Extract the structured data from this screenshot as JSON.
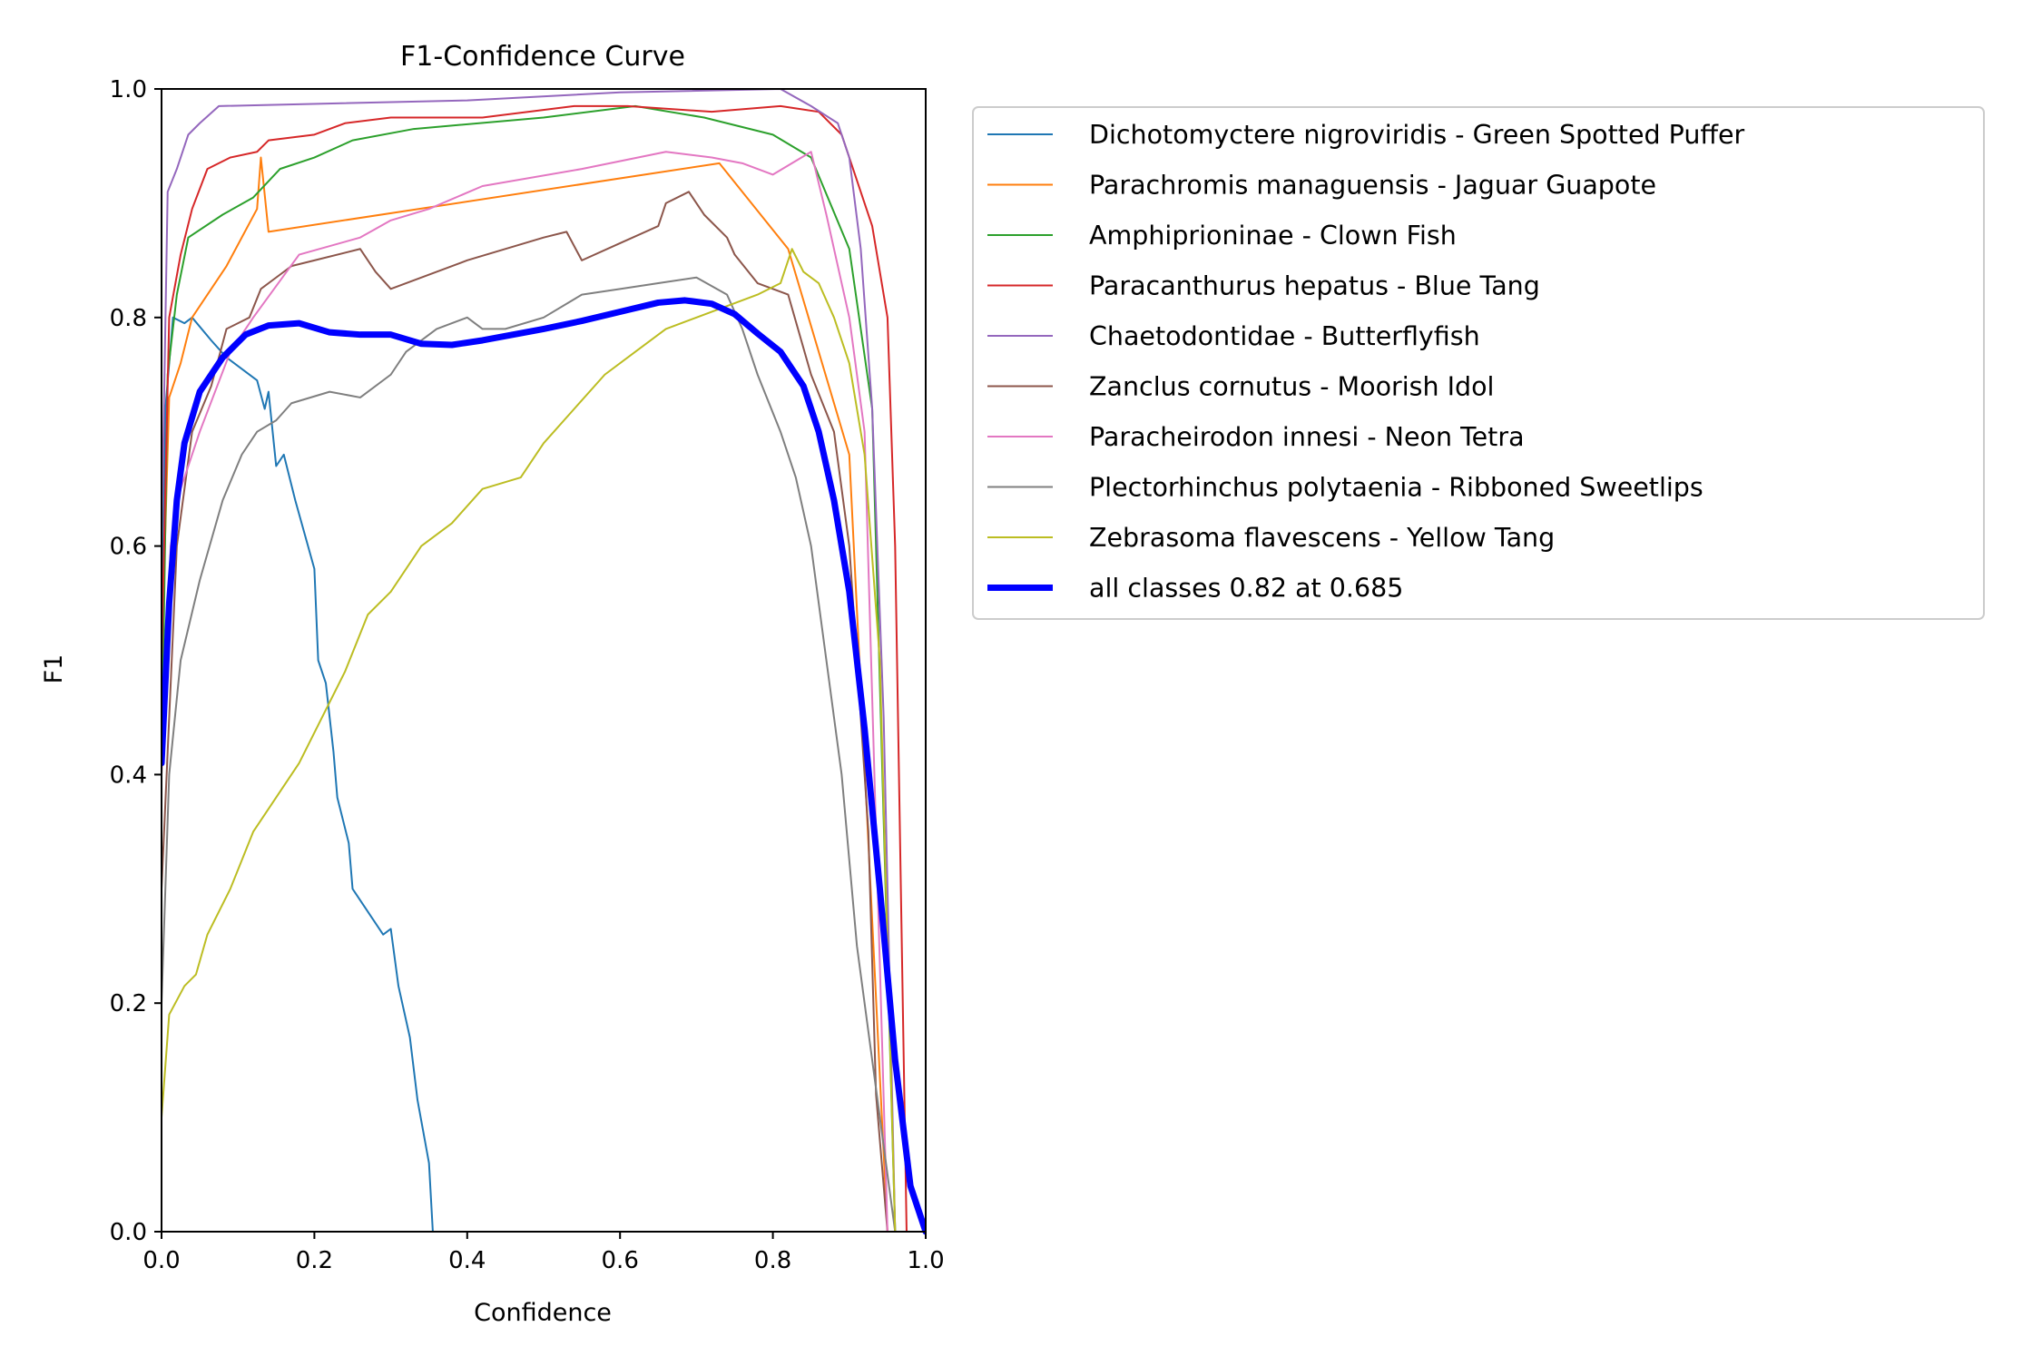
{
  "chart_data": {
    "type": "line",
    "title": "F1-Confidence Curve",
    "xlabel": "Confidence",
    "ylabel": "F1",
    "xlim": [
      0.0,
      1.0
    ],
    "ylim": [
      0.0,
      1.0
    ],
    "x_ticks": [
      "0.0",
      "0.2",
      "0.4",
      "0.6",
      "0.8",
      "1.0"
    ],
    "y_ticks": [
      "0.0",
      "0.2",
      "0.4",
      "0.6",
      "0.8",
      "1.0"
    ],
    "grid": false,
    "legend_position": "outside-right",
    "series": [
      {
        "name": "Dichotomyctere nigroviridis - Green Spotted Puffer",
        "color": "#1f77b4",
        "width": 2,
        "points": [
          [
            0.0,
            0.5
          ],
          [
            0.005,
            0.72
          ],
          [
            0.015,
            0.8
          ],
          [
            0.03,
            0.795
          ],
          [
            0.04,
            0.8
          ],
          [
            0.065,
            0.78
          ],
          [
            0.085,
            0.765
          ],
          [
            0.125,
            0.745
          ],
          [
            0.135,
            0.72
          ],
          [
            0.14,
            0.735
          ],
          [
            0.15,
            0.67
          ],
          [
            0.16,
            0.68
          ],
          [
            0.175,
            0.64
          ],
          [
            0.2,
            0.58
          ],
          [
            0.205,
            0.5
          ],
          [
            0.215,
            0.48
          ],
          [
            0.225,
            0.42
          ],
          [
            0.23,
            0.38
          ],
          [
            0.245,
            0.34
          ],
          [
            0.25,
            0.3
          ],
          [
            0.29,
            0.26
          ],
          [
            0.3,
            0.265
          ],
          [
            0.31,
            0.215
          ],
          [
            0.325,
            0.17
          ],
          [
            0.335,
            0.115
          ],
          [
            0.35,
            0.06
          ],
          [
            0.355,
            0.0
          ],
          [
            1.0,
            0.0
          ]
        ]
      },
      {
        "name": "Parachromis managuensis - Jaguar Guapote",
        "color": "#ff7f0e",
        "width": 2,
        "points": [
          [
            0.0,
            0.5
          ],
          [
            0.01,
            0.73
          ],
          [
            0.025,
            0.76
          ],
          [
            0.04,
            0.8
          ],
          [
            0.085,
            0.845
          ],
          [
            0.125,
            0.895
          ],
          [
            0.13,
            0.94
          ],
          [
            0.14,
            0.875
          ],
          [
            0.73,
            0.935
          ],
          [
            0.82,
            0.86
          ],
          [
            0.9,
            0.68
          ],
          [
            0.95,
            0.0
          ]
        ]
      },
      {
        "name": "Amphiprioninae - Clown Fish",
        "color": "#2ca02c",
        "width": 2,
        "points": [
          [
            0.0,
            0.4
          ],
          [
            0.008,
            0.75
          ],
          [
            0.02,
            0.82
          ],
          [
            0.035,
            0.87
          ],
          [
            0.08,
            0.89
          ],
          [
            0.12,
            0.905
          ],
          [
            0.155,
            0.93
          ],
          [
            0.2,
            0.94
          ],
          [
            0.25,
            0.955
          ],
          [
            0.33,
            0.965
          ],
          [
            0.5,
            0.975
          ],
          [
            0.62,
            0.985
          ],
          [
            0.71,
            0.975
          ],
          [
            0.8,
            0.96
          ],
          [
            0.85,
            0.94
          ],
          [
            0.9,
            0.86
          ],
          [
            0.93,
            0.72
          ],
          [
            0.96,
            0.0
          ]
        ]
      },
      {
        "name": "Paracanthurus hepatus - Blue Tang",
        "color": "#d62728",
        "width": 2,
        "points": [
          [
            0.0,
            0.5
          ],
          [
            0.01,
            0.8
          ],
          [
            0.025,
            0.855
          ],
          [
            0.04,
            0.895
          ],
          [
            0.06,
            0.93
          ],
          [
            0.09,
            0.94
          ],
          [
            0.125,
            0.945
          ],
          [
            0.14,
            0.955
          ],
          [
            0.2,
            0.96
          ],
          [
            0.24,
            0.97
          ],
          [
            0.3,
            0.975
          ],
          [
            0.42,
            0.975
          ],
          [
            0.54,
            0.985
          ],
          [
            0.61,
            0.985
          ],
          [
            0.72,
            0.98
          ],
          [
            0.81,
            0.985
          ],
          [
            0.86,
            0.98
          ],
          [
            0.89,
            0.96
          ],
          [
            0.905,
            0.93
          ],
          [
            0.93,
            0.88
          ],
          [
            0.95,
            0.8
          ],
          [
            0.96,
            0.6
          ],
          [
            0.975,
            0.0
          ]
        ]
      },
      {
        "name": "Chaetodontidae - Butterflyfish",
        "color": "#9467bd",
        "width": 2,
        "points": [
          [
            0.0,
            0.6
          ],
          [
            0.008,
            0.91
          ],
          [
            0.02,
            0.93
          ],
          [
            0.035,
            0.96
          ],
          [
            0.05,
            0.97
          ],
          [
            0.075,
            0.985
          ],
          [
            0.4,
            0.99
          ],
          [
            0.6,
            0.997
          ],
          [
            0.81,
            1.0
          ],
          [
            0.85,
            0.985
          ],
          [
            0.885,
            0.97
          ],
          [
            0.9,
            0.94
          ],
          [
            0.915,
            0.86
          ],
          [
            0.93,
            0.72
          ],
          [
            0.945,
            0.45
          ],
          [
            0.96,
            0.0
          ]
        ]
      },
      {
        "name": "Zanclus cornutus - Moorish Idol",
        "color": "#8c564b",
        "width": 2,
        "points": [
          [
            0.0,
            0.3
          ],
          [
            0.02,
            0.6
          ],
          [
            0.04,
            0.7
          ],
          [
            0.065,
            0.74
          ],
          [
            0.085,
            0.79
          ],
          [
            0.115,
            0.8
          ],
          [
            0.13,
            0.825
          ],
          [
            0.15,
            0.835
          ],
          [
            0.17,
            0.845
          ],
          [
            0.2,
            0.85
          ],
          [
            0.26,
            0.86
          ],
          [
            0.28,
            0.84
          ],
          [
            0.3,
            0.825
          ],
          [
            0.4,
            0.85
          ],
          [
            0.5,
            0.87
          ],
          [
            0.53,
            0.875
          ],
          [
            0.55,
            0.85
          ],
          [
            0.6,
            0.865
          ],
          [
            0.65,
            0.88
          ],
          [
            0.66,
            0.9
          ],
          [
            0.69,
            0.91
          ],
          [
            0.71,
            0.89
          ],
          [
            0.74,
            0.87
          ],
          [
            0.75,
            0.855
          ],
          [
            0.78,
            0.83
          ],
          [
            0.82,
            0.82
          ],
          [
            0.85,
            0.75
          ],
          [
            0.88,
            0.7
          ],
          [
            0.9,
            0.6
          ],
          [
            0.925,
            0.35
          ],
          [
            0.935,
            0.12
          ],
          [
            0.95,
            0.0
          ]
        ]
      },
      {
        "name": "Paracheirodon innesi - Neon Tetra",
        "color": "#e377c2",
        "width": 2,
        "points": [
          [
            0.0,
            0.4
          ],
          [
            0.012,
            0.6
          ],
          [
            0.025,
            0.65
          ],
          [
            0.05,
            0.7
          ],
          [
            0.09,
            0.77
          ],
          [
            0.12,
            0.8
          ],
          [
            0.18,
            0.855
          ],
          [
            0.26,
            0.87
          ],
          [
            0.3,
            0.885
          ],
          [
            0.35,
            0.895
          ],
          [
            0.42,
            0.915
          ],
          [
            0.55,
            0.93
          ],
          [
            0.66,
            0.945
          ],
          [
            0.72,
            0.94
          ],
          [
            0.76,
            0.935
          ],
          [
            0.8,
            0.925
          ],
          [
            0.85,
            0.945
          ],
          [
            0.87,
            0.89
          ],
          [
            0.9,
            0.8
          ],
          [
            0.92,
            0.7
          ],
          [
            0.95,
            0.0
          ]
        ]
      },
      {
        "name": "Plectorhinchus polytaenia - Ribboned Sweetlips",
        "color": "#7f7f7f",
        "width": 2,
        "points": [
          [
            0.0,
            0.2
          ],
          [
            0.01,
            0.4
          ],
          [
            0.025,
            0.5
          ],
          [
            0.05,
            0.57
          ],
          [
            0.08,
            0.64
          ],
          [
            0.105,
            0.68
          ],
          [
            0.125,
            0.7
          ],
          [
            0.15,
            0.71
          ],
          [
            0.17,
            0.725
          ],
          [
            0.22,
            0.735
          ],
          [
            0.26,
            0.73
          ],
          [
            0.3,
            0.75
          ],
          [
            0.32,
            0.77
          ],
          [
            0.36,
            0.79
          ],
          [
            0.4,
            0.8
          ],
          [
            0.42,
            0.79
          ],
          [
            0.45,
            0.79
          ],
          [
            0.5,
            0.8
          ],
          [
            0.55,
            0.82
          ],
          [
            0.6,
            0.825
          ],
          [
            0.65,
            0.83
          ],
          [
            0.7,
            0.835
          ],
          [
            0.74,
            0.82
          ],
          [
            0.76,
            0.79
          ],
          [
            0.78,
            0.75
          ],
          [
            0.81,
            0.7
          ],
          [
            0.83,
            0.66
          ],
          [
            0.85,
            0.6
          ],
          [
            0.87,
            0.5
          ],
          [
            0.89,
            0.4
          ],
          [
            0.91,
            0.25
          ],
          [
            0.93,
            0.15
          ],
          [
            0.96,
            0.0
          ]
        ]
      },
      {
        "name": "Zebrasoma flavescens - Yellow Tang",
        "color": "#bcbd22",
        "width": 2,
        "points": [
          [
            0.0,
            0.1
          ],
          [
            0.01,
            0.19
          ],
          [
            0.03,
            0.215
          ],
          [
            0.045,
            0.225
          ],
          [
            0.06,
            0.26
          ],
          [
            0.09,
            0.3
          ],
          [
            0.12,
            0.35
          ],
          [
            0.15,
            0.38
          ],
          [
            0.18,
            0.41
          ],
          [
            0.21,
            0.45
          ],
          [
            0.24,
            0.49
          ],
          [
            0.27,
            0.54
          ],
          [
            0.3,
            0.56
          ],
          [
            0.34,
            0.6
          ],
          [
            0.38,
            0.62
          ],
          [
            0.42,
            0.65
          ],
          [
            0.47,
            0.66
          ],
          [
            0.5,
            0.69
          ],
          [
            0.54,
            0.72
          ],
          [
            0.58,
            0.75
          ],
          [
            0.62,
            0.77
          ],
          [
            0.66,
            0.79
          ],
          [
            0.7,
            0.8
          ],
          [
            0.74,
            0.81
          ],
          [
            0.78,
            0.82
          ],
          [
            0.81,
            0.83
          ],
          [
            0.825,
            0.86
          ],
          [
            0.84,
            0.84
          ],
          [
            0.86,
            0.83
          ],
          [
            0.88,
            0.8
          ],
          [
            0.9,
            0.76
          ],
          [
            0.92,
            0.68
          ],
          [
            0.94,
            0.5
          ],
          [
            0.96,
            0.0
          ]
        ]
      },
      {
        "name": "all classes 0.82 at 0.685",
        "color": "#0000ff",
        "width": 7,
        "points": [
          [
            0.0,
            0.41
          ],
          [
            0.01,
            0.55
          ],
          [
            0.02,
            0.64
          ],
          [
            0.03,
            0.69
          ],
          [
            0.05,
            0.735
          ],
          [
            0.08,
            0.765
          ],
          [
            0.11,
            0.785
          ],
          [
            0.14,
            0.793
          ],
          [
            0.18,
            0.795
          ],
          [
            0.22,
            0.787
          ],
          [
            0.26,
            0.785
          ],
          [
            0.3,
            0.785
          ],
          [
            0.34,
            0.777
          ],
          [
            0.38,
            0.776
          ],
          [
            0.42,
            0.78
          ],
          [
            0.46,
            0.785
          ],
          [
            0.5,
            0.79
          ],
          [
            0.55,
            0.797
          ],
          [
            0.6,
            0.805
          ],
          [
            0.65,
            0.813
          ],
          [
            0.685,
            0.815
          ],
          [
            0.72,
            0.812
          ],
          [
            0.75,
            0.803
          ],
          [
            0.78,
            0.786
          ],
          [
            0.81,
            0.77
          ],
          [
            0.84,
            0.74
          ],
          [
            0.86,
            0.7
          ],
          [
            0.88,
            0.64
          ],
          [
            0.9,
            0.56
          ],
          [
            0.92,
            0.44
          ],
          [
            0.94,
            0.3
          ],
          [
            0.96,
            0.15
          ],
          [
            0.98,
            0.04
          ],
          [
            1.0,
            0.0
          ]
        ]
      }
    ]
  }
}
